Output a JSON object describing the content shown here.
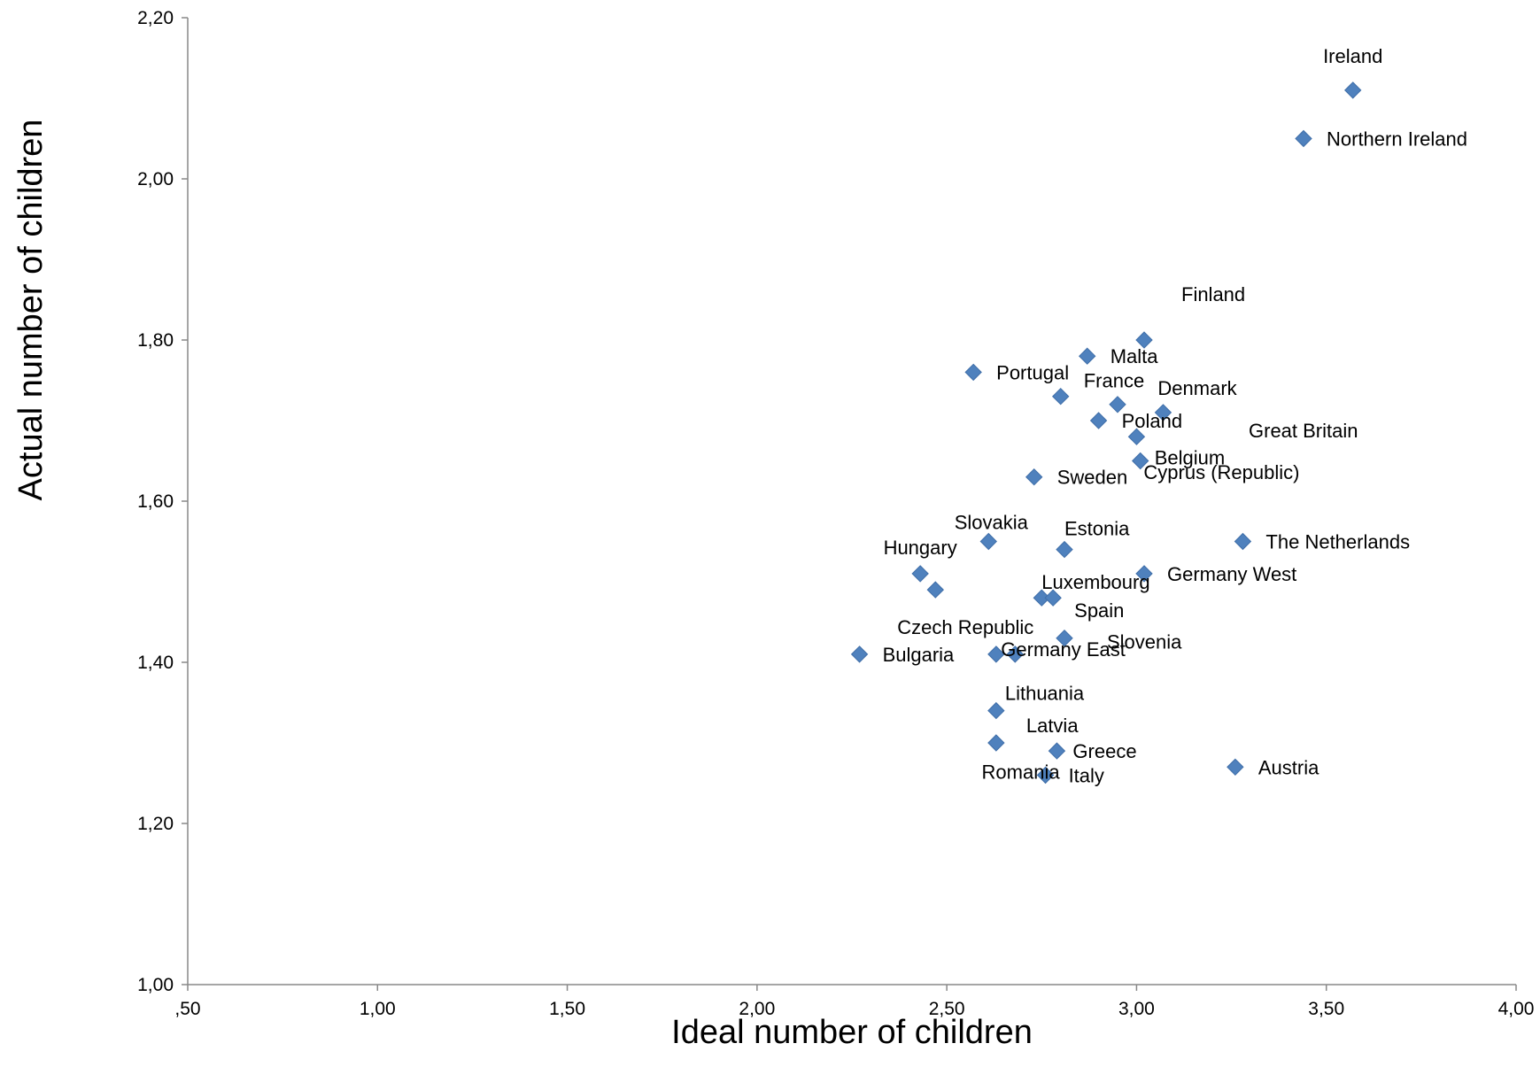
{
  "chart_data": {
    "type": "scatter",
    "title": "",
    "xlabel": "Ideal number of children",
    "ylabel": "Actual number of children",
    "xlim": [
      0.5,
      4.0
    ],
    "ylim": [
      1.0,
      2.2
    ],
    "x_ticks": [
      ",50",
      "1,00",
      "1,50",
      "2,00",
      "2,50",
      "3,00",
      "3,50",
      "4,00"
    ],
    "y_ticks": [
      "1,00",
      "1,20",
      "1,40",
      "1,60",
      "1,80",
      "2,00",
      "2,20"
    ],
    "grid": false,
    "marker_color": "#4F81BD",
    "marker_shape": "diamond",
    "points": [
      {
        "label": "Ireland",
        "x": 3.57,
        "y": 2.11
      },
      {
        "label": "Northern Ireland",
        "x": 3.44,
        "y": 2.05
      },
      {
        "label": "Finland",
        "x": 3.02,
        "y": 1.8
      },
      {
        "label": "Malta",
        "x": 2.87,
        "y": 1.78
      },
      {
        "label": "Portugal",
        "x": 2.57,
        "y": 1.76
      },
      {
        "label": "France",
        "x": 2.8,
        "y": 1.73
      },
      {
        "label": "Denmark",
        "x": 3.07,
        "y": 1.71
      },
      {
        "label": "Great Britain",
        "x": 2.95,
        "y": 1.72
      },
      {
        "label": "Poland",
        "x": 2.9,
        "y": 1.7
      },
      {
        "label": "Belgium",
        "x": 3.01,
        "y": 1.65
      },
      {
        "label": "Cyprus (Republic)",
        "x": 3.0,
        "y": 1.68
      },
      {
        "label": "Sweden",
        "x": 2.73,
        "y": 1.63
      },
      {
        "label": "The Netherlands",
        "x": 3.28,
        "y": 1.55
      },
      {
        "label": "Slovakia",
        "x": 2.61,
        "y": 1.55
      },
      {
        "label": "Estonia",
        "x": 2.81,
        "y": 1.54
      },
      {
        "label": "Hungary",
        "x": 2.43,
        "y": 1.51
      },
      {
        "label": "Germany West",
        "x": 3.02,
        "y": 1.51
      },
      {
        "label": "Czech Republic",
        "x": 2.47,
        "y": 1.49
      },
      {
        "label": "Luxembourg",
        "x": 2.75,
        "y": 1.48
      },
      {
        "label": "Spain",
        "x": 2.78,
        "y": 1.48
      },
      {
        "label": "Slovenia",
        "x": 2.81,
        "y": 1.43
      },
      {
        "label": "Germany East",
        "x": 2.68,
        "y": 1.41
      },
      {
        "label": "Bulgaria",
        "x": 2.27,
        "y": 1.41
      },
      {
        "label": "",
        "x": 2.63,
        "y": 1.41
      },
      {
        "label": "Lithuania",
        "x": 2.63,
        "y": 1.34
      },
      {
        "label": "Latvia",
        "x": 2.63,
        "y": 1.3
      },
      {
        "label": "Greece",
        "x": 2.79,
        "y": 1.29
      },
      {
        "label": "Austria",
        "x": 3.26,
        "y": 1.27
      },
      {
        "label": "Romania",
        "x": 2.76,
        "y": 1.26
      },
      {
        "label": "Italy",
        "x": 2.76,
        "y": 1.26
      }
    ]
  }
}
